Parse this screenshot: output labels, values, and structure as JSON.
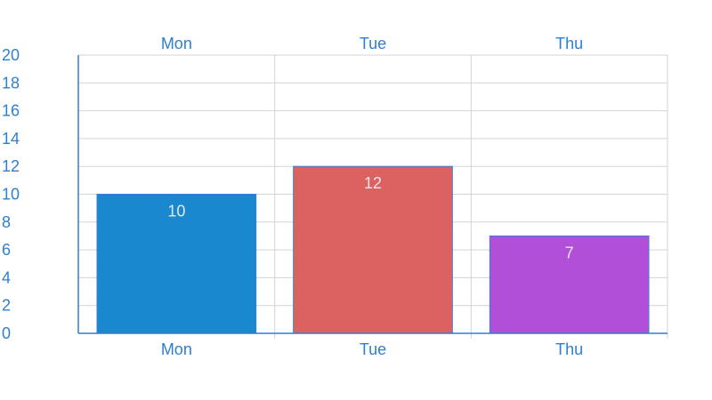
{
  "chart_data": {
    "type": "bar",
    "categories": [
      "Mon",
      "Tue",
      "Thu"
    ],
    "values": [
      10,
      12,
      7
    ],
    "data_labels": [
      "10",
      "12",
      "7"
    ],
    "y_ticks": [
      0,
      2,
      4,
      6,
      8,
      10,
      12,
      14,
      16,
      18,
      20
    ],
    "ylim": [
      0,
      20
    ],
    "colors": [
      "#1a88ce",
      "#dc6262",
      "#b24fd9"
    ],
    "bar_border_color": "#3a7fd3",
    "axis_color": "#2f7fd0",
    "tick_label_color": "#2f7fd0",
    "grid_color": "#d3d3d3",
    "grid": true,
    "category_labels_top": true,
    "category_labels_bottom": true,
    "legend": "none"
  }
}
